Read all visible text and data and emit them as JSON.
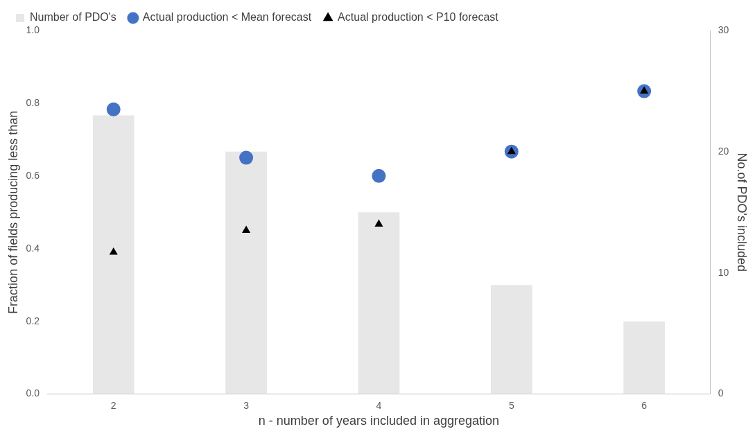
{
  "chart_data": {
    "type": "bar",
    "xlabel": "n - number of years included in aggregation",
    "ylabel": "Fraction of fields producing less than",
    "y2label": "No.of PDO's included",
    "categories": [
      "2",
      "3",
      "4",
      "5",
      "6"
    ],
    "series": [
      {
        "name": "Number of PDO's",
        "axis": "y2",
        "color": "#e7e7e7",
        "values": [
          23,
          20,
          15,
          9,
          6
        ]
      },
      {
        "name": "Actual production < Mean forecast",
        "type": "scatter",
        "marker": "circle",
        "color": "#4472c4",
        "values": [
          0.783,
          0.65,
          0.6,
          0.667,
          0.833
        ]
      },
      {
        "name": "Actual production < P10 forecast",
        "type": "scatter",
        "marker": "triangle",
        "color": "#000000",
        "values": [
          0.39,
          0.45,
          0.467,
          0.667,
          0.833
        ]
      }
    ],
    "ylim": [
      0,
      1
    ],
    "yticks": [
      {
        "value": 0,
        "label": "0.0"
      },
      {
        "value": 0.2,
        "label": "0.2"
      },
      {
        "value": 0.4,
        "label": "0.4"
      },
      {
        "value": 0.6,
        "label": "0.6"
      },
      {
        "value": 0.8,
        "label": "0.8"
      },
      {
        "value": 1,
        "label": "1.0"
      }
    ],
    "y2lim": [
      0,
      30
    ],
    "y2ticks": [
      0,
      10,
      20,
      30
    ],
    "grid": false,
    "legend": "top left"
  }
}
